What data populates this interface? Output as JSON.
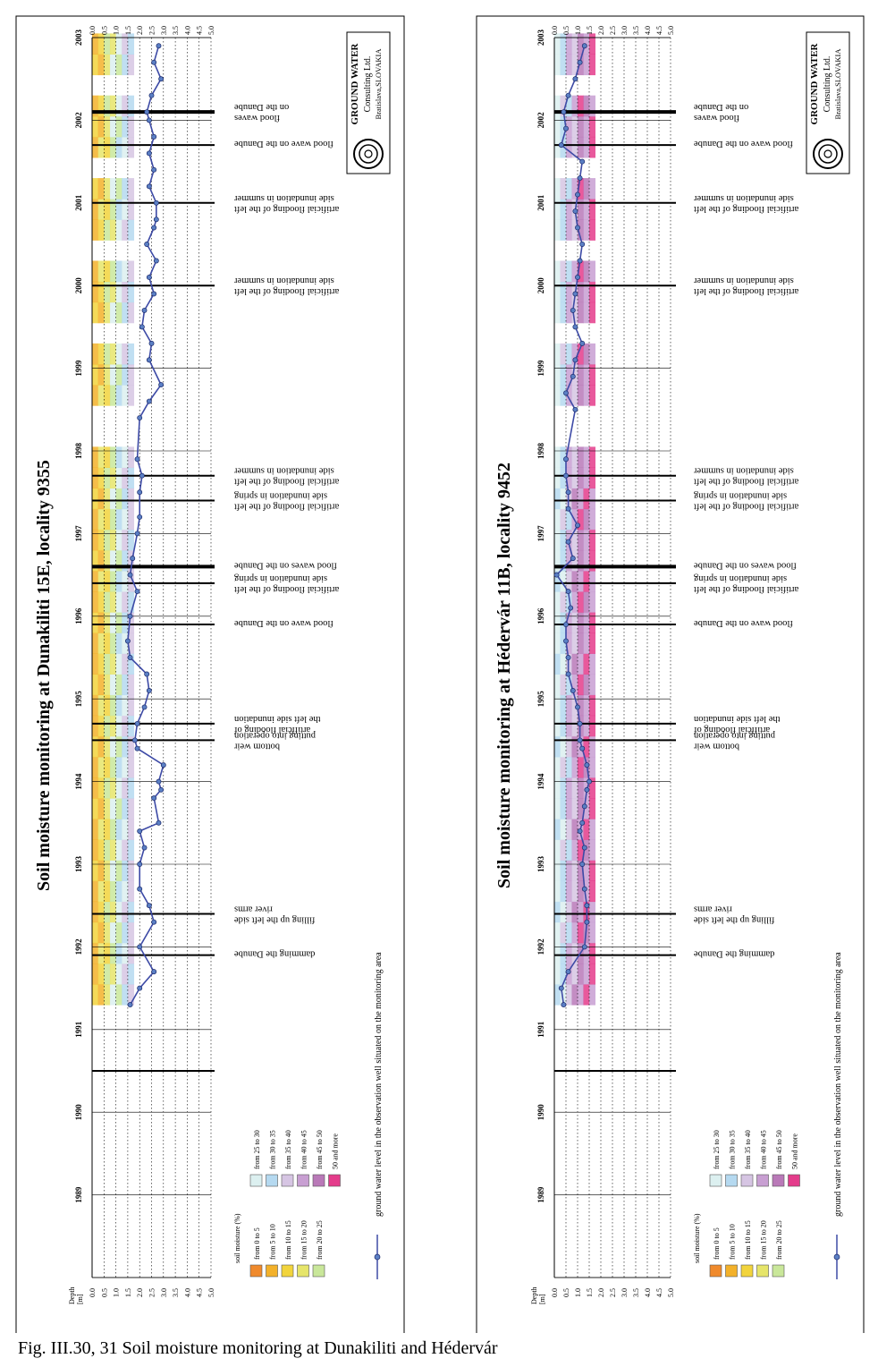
{
  "caption": "Fig. III.30, 31  Soil moisture monitoring at Dunakiliti and Hédervár",
  "legend": {
    "heading": "soil moisture (%)",
    "left": [
      {
        "label": "from 0 to 5",
        "color": "#f08a2c"
      },
      {
        "label": "from 5 to 10",
        "color": "#f3b12a"
      },
      {
        "label": "from 10 to 15",
        "color": "#f2d43c"
      },
      {
        "label": "from 15 to 20",
        "color": "#e6e56a"
      },
      {
        "label": "from 20 to 25",
        "color": "#c9e79a"
      }
    ],
    "right": [
      {
        "label": "from 25 to 30",
        "color": "#dcf0f0"
      },
      {
        "label": "from 30 to 35",
        "color": "#b5d9f0"
      },
      {
        "label": "from 35 to 40",
        "color": "#d6c5e3"
      },
      {
        "label": "from 40 to 45",
        "color": "#c89fd2"
      },
      {
        "label": "from 45 to 50",
        "color": "#b979b8"
      },
      {
        "label": "50 and more",
        "color": "#e43c8b"
      }
    ],
    "well_label": "ground water level in the observation well situated on the monitoring area",
    "well_color": "#3d4aa6"
  },
  "logo": {
    "line1": "GROUND WATER",
    "line2": "Consulting Ltd.",
    "line3": "Bratislava,SLOVAKIA"
  },
  "depth_axis": {
    "label": "Depth\n[m]",
    "ticks": [
      "0.0",
      "0.5",
      "1.0",
      "1.5",
      "2.0",
      "2.5",
      "3.0",
      "3.5",
      "4.0",
      "4.5",
      "5.0"
    ]
  },
  "years": [
    "1989",
    "1990",
    "1991",
    "1992",
    "1993",
    "1994",
    "1995",
    "1996",
    "1997",
    "1998",
    "1999",
    "2000",
    "2001",
    "2002",
    "2003"
  ],
  "chart_data": [
    {
      "type": "heatmap",
      "title": "Soil moisture monitoring at Dunakiliti 15E, locality 9355",
      "ylabel": "Depth [m]",
      "ylim": [
        0,
        5
      ],
      "palette": "dry",
      "groundwater_depth": [
        [
          1991.8,
          1.6
        ],
        [
          1992.0,
          2.0
        ],
        [
          1992.2,
          2.6
        ],
        [
          1992.5,
          2.0
        ],
        [
          1992.8,
          2.6
        ],
        [
          1993.0,
          2.4
        ],
        [
          1993.2,
          2.0
        ],
        [
          1993.5,
          2.0
        ],
        [
          1993.7,
          2.2
        ],
        [
          1993.9,
          2.0
        ],
        [
          1994.0,
          2.8
        ],
        [
          1994.3,
          2.6
        ],
        [
          1994.4,
          2.9
        ],
        [
          1994.5,
          2.8
        ],
        [
          1994.7,
          3.0
        ],
        [
          1994.9,
          1.9
        ],
        [
          1995.0,
          1.8
        ],
        [
          1995.2,
          1.9
        ],
        [
          1995.4,
          2.2
        ],
        [
          1995.6,
          2.4
        ],
        [
          1995.8,
          2.3
        ],
        [
          1996.0,
          1.6
        ],
        [
          1996.2,
          1.5
        ],
        [
          1996.5,
          1.6
        ],
        [
          1996.8,
          1.9
        ],
        [
          1997.0,
          1.6
        ],
        [
          1997.2,
          1.7
        ],
        [
          1997.5,
          1.9
        ],
        [
          1997.7,
          2.0
        ],
        [
          1998.0,
          2.0
        ],
        [
          1998.2,
          2.1
        ],
        [
          1998.4,
          1.9
        ],
        [
          1998.9,
          2.0
        ],
        [
          1999.1,
          2.4
        ],
        [
          1999.3,
          2.9
        ],
        [
          1999.6,
          2.4
        ],
        [
          1999.8,
          2.5
        ],
        [
          2000.0,
          2.1
        ],
        [
          2000.2,
          2.2
        ],
        [
          2000.4,
          2.6
        ],
        [
          2000.6,
          2.4
        ],
        [
          2000.8,
          2.7
        ],
        [
          2001.0,
          2.3
        ],
        [
          2001.2,
          2.6
        ],
        [
          2001.3,
          2.7
        ],
        [
          2001.5,
          2.7
        ],
        [
          2001.7,
          2.4
        ],
        [
          2001.9,
          2.6
        ],
        [
          2002.1,
          2.4
        ],
        [
          2002.3,
          2.6
        ],
        [
          2002.5,
          2.4
        ],
        [
          2002.6,
          2.3
        ],
        [
          2002.8,
          2.5
        ],
        [
          2003.0,
          2.9
        ],
        [
          2003.2,
          2.6
        ],
        [
          2003.4,
          2.8
        ]
      ],
      "events": [
        {
          "date": 1991.0,
          "label": "",
          "bold": false
        },
        {
          "date": 1992.4,
          "label": "damming the Danube",
          "bold": false
        },
        {
          "date": 1992.9,
          "label": "filling up the left side\nriver arms",
          "bold": false
        },
        {
          "date": 1995.0,
          "label": "bottom weir\nputting into operation",
          "bold": false
        },
        {
          "date": 1995.2,
          "label": "artificial flooding of\nthe left side inundation",
          "bold": false
        },
        {
          "date": 1996.4,
          "label": "flood wave on the Danube",
          "bold": false
        },
        {
          "date": 1996.9,
          "label": "artificial flooding of the left\nside inundation in spring",
          "bold": false
        },
        {
          "date": 1997.1,
          "label": "flood waves on the Danube",
          "bold": true
        },
        {
          "date": 1997.9,
          "label": "artificial flooding of the left\nside inundation in spring",
          "bold": false
        },
        {
          "date": 1998.2,
          "label": "artificial flooding of the left\nside inundation in summer",
          "bold": false
        },
        {
          "date": 2000.5,
          "label": "artificial flooding of the left\nside inundation in summer",
          "bold": false
        },
        {
          "date": 2001.5,
          "label": "artificial flooding of the left\nside inundation in summer",
          "bold": false
        },
        {
          "date": 2002.2,
          "label": "flood wave on the Danube",
          "bold": false
        },
        {
          "date": 2002.6,
          "label": "flood waves\non the Danube",
          "bold": true
        }
      ]
    },
    {
      "type": "heatmap",
      "title": "Soil moisture monitoring at Hédervár 11B, locality 9452",
      "ylabel": "Depth [m]",
      "ylim": [
        0,
        5
      ],
      "palette": "wet",
      "groundwater_depth": [
        [
          1991.8,
          0.4
        ],
        [
          1992.0,
          0.3
        ],
        [
          1992.2,
          0.6
        ],
        [
          1992.5,
          1.3
        ],
        [
          1992.8,
          1.4
        ],
        [
          1993.0,
          1.4
        ],
        [
          1993.2,
          1.3
        ],
        [
          1993.5,
          1.2
        ],
        [
          1993.7,
          1.3
        ],
        [
          1993.9,
          1.1
        ],
        [
          1994.0,
          1.2
        ],
        [
          1994.2,
          1.3
        ],
        [
          1994.4,
          1.4
        ],
        [
          1994.5,
          1.5
        ],
        [
          1994.7,
          1.4
        ],
        [
          1994.9,
          1.2
        ],
        [
          1995.0,
          1.1
        ],
        [
          1995.2,
          1.1
        ],
        [
          1995.4,
          1.0
        ],
        [
          1995.6,
          0.8
        ],
        [
          1995.8,
          0.6
        ],
        [
          1996.0,
          0.6
        ],
        [
          1996.2,
          0.5
        ],
        [
          1996.4,
          0.5
        ],
        [
          1996.6,
          0.7
        ],
        [
          1996.8,
          0.6
        ],
        [
          1997.0,
          0.1
        ],
        [
          1997.2,
          0.8
        ],
        [
          1997.4,
          0.6
        ],
        [
          1997.6,
          1.0
        ],
        [
          1997.8,
          0.6
        ],
        [
          1998.0,
          0.6
        ],
        [
          1998.2,
          0.5
        ],
        [
          1998.4,
          0.5
        ],
        [
          1999.0,
          0.9
        ],
        [
          1999.2,
          0.5
        ],
        [
          1999.4,
          0.8
        ],
        [
          1999.6,
          0.9
        ],
        [
          1999.8,
          1.2
        ],
        [
          2000.0,
          0.9
        ],
        [
          2000.2,
          0.8
        ],
        [
          2000.4,
          0.9
        ],
        [
          2000.6,
          1.0
        ],
        [
          2000.8,
          1.1
        ],
        [
          2001.0,
          1.2
        ],
        [
          2001.2,
          1.0
        ],
        [
          2001.4,
          0.9
        ],
        [
          2001.6,
          1.0
        ],
        [
          2001.8,
          1.1
        ],
        [
          2002.0,
          1.2
        ],
        [
          2002.2,
          0.3
        ],
        [
          2002.4,
          0.5
        ],
        [
          2002.6,
          0.4
        ],
        [
          2002.8,
          0.6
        ],
        [
          2003.0,
          0.9
        ],
        [
          2003.2,
          1.1
        ],
        [
          2003.4,
          1.3
        ]
      ],
      "events": [
        {
          "date": 1991.0,
          "label": "",
          "bold": false
        },
        {
          "date": 1992.4,
          "label": "damming the Danube",
          "bold": false
        },
        {
          "date": 1992.9,
          "label": "filling up the left side\nriver arms",
          "bold": false
        },
        {
          "date": 1995.0,
          "label": "bottom weir\nputting into operation",
          "bold": false
        },
        {
          "date": 1995.2,
          "label": "artificial flooding of\nthe left side inundation",
          "bold": false
        },
        {
          "date": 1996.4,
          "label": "flood wave on the Danube",
          "bold": false
        },
        {
          "date": 1996.9,
          "label": "artificial flooding of the left\nside inundation in spring",
          "bold": false
        },
        {
          "date": 1997.1,
          "label": "flood waves on the Danube",
          "bold": true
        },
        {
          "date": 1997.9,
          "label": "artificial flooding of the left\nside inundation in spring",
          "bold": false
        },
        {
          "date": 1998.2,
          "label": "artificial flooding of the left\nside inundation in summer",
          "bold": false
        },
        {
          "date": 2000.5,
          "label": "artificial flooding of the left\nside inundation in summer",
          "bold": false
        },
        {
          "date": 2001.5,
          "label": "artificial flooding of the left\nside inundation in summer",
          "bold": false
        },
        {
          "date": 2002.2,
          "label": "flood wave on the Danube",
          "bold": false
        },
        {
          "date": 2002.6,
          "label": "flood waves\non the Danube",
          "bold": true
        }
      ]
    }
  ]
}
